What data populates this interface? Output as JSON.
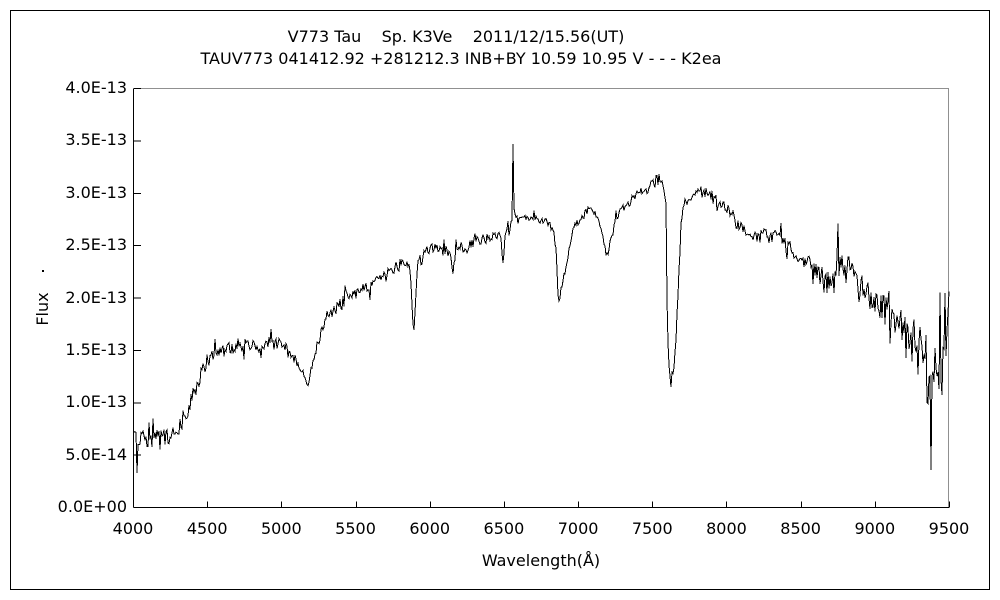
{
  "window": {
    "background": "#ffffff",
    "border_color": "#000000"
  },
  "chart_data": {
    "type": "line",
    "title": "V773 Tau    Sp. K3Ve    2011/12/15.56(UT)",
    "subtitle": "TAUV773 041412.92 +281212.3 INB+BY 10.59 10.95 V - - - K2ea",
    "xlabel": "Wavelength(Å)",
    "ylabel": "Flux",
    "xlim": [
      4000,
      9500
    ],
    "ylim": [
      0,
      4e-13
    ],
    "grid": false,
    "legend": false,
    "x_ticks": [
      4000,
      4500,
      5000,
      5500,
      6000,
      6500,
      7000,
      7500,
      8000,
      8500,
      9000,
      9500
    ],
    "y_tick_labels": [
      "4.0E-13",
      "3.5E-13",
      "3.0E-13",
      "2.5E-13",
      "2.0E-13",
      "1.5E-13",
      "1.0E-13",
      "5.0E-14",
      "0.0E+00"
    ],
    "line_color": "#000000",
    "axis_color": "#000000",
    "frame_top_right_color": "#909090",
    "flux_scale": 1e-13,
    "flux_values_in_units_of_1e-13": true,
    "envelope": [
      [
        4000,
        0.7
      ],
      [
        4022,
        0.62
      ],
      [
        4060,
        0.66
      ],
      [
        4100,
        0.63
      ],
      [
        4150,
        0.66
      ],
      [
        4200,
        0.64
      ],
      [
        4250,
        0.7
      ],
      [
        4300,
        0.74
      ],
      [
        4350,
        0.88
      ],
      [
        4400,
        1.05
      ],
      [
        4450,
        1.25
      ],
      [
        4500,
        1.4
      ],
      [
        4550,
        1.48
      ],
      [
        4600,
        1.51
      ],
      [
        4700,
        1.53
      ],
      [
        4800,
        1.57
      ],
      [
        4855,
        1.52
      ],
      [
        4862,
        1.38
      ],
      [
        4870,
        1.52
      ],
      [
        4900,
        1.58
      ],
      [
        5000,
        1.55
      ],
      [
        5060,
        1.48
      ],
      [
        5120,
        1.38
      ],
      [
        5160,
        1.22
      ],
      [
        5178,
        1.16
      ],
      [
        5205,
        1.34
      ],
      [
        5250,
        1.6
      ],
      [
        5300,
        1.8
      ],
      [
        5350,
        1.88
      ],
      [
        5400,
        1.94
      ],
      [
        5450,
        2.0
      ],
      [
        5500,
        2.04
      ],
      [
        5550,
        2.08
      ],
      [
        5600,
        2.12
      ],
      [
        5650,
        2.16
      ],
      [
        5700,
        2.22
      ],
      [
        5750,
        2.27
      ],
      [
        5800,
        2.32
      ],
      [
        5840,
        2.36
      ],
      [
        5868,
        2.28
      ],
      [
        5886,
        1.8
      ],
      [
        5893,
        1.66
      ],
      [
        5902,
        1.88
      ],
      [
        5917,
        2.3
      ],
      [
        5950,
        2.4
      ],
      [
        6000,
        2.46
      ],
      [
        6050,
        2.48
      ],
      [
        6100,
        2.45
      ],
      [
        6140,
        2.44
      ],
      [
        6157,
        2.22
      ],
      [
        6175,
        2.44
      ],
      [
        6200,
        2.48
      ],
      [
        6250,
        2.5
      ],
      [
        6300,
        2.53
      ],
      [
        6350,
        2.55
      ],
      [
        6400,
        2.58
      ],
      [
        6450,
        2.6
      ],
      [
        6480,
        2.58
      ],
      [
        6494,
        2.35
      ],
      [
        6510,
        2.6
      ],
      [
        6540,
        2.68
      ],
      [
        6556,
        2.78
      ],
      [
        6563,
        3.05
      ],
      [
        6570,
        2.78
      ],
      [
        6600,
        2.74
      ],
      [
        6650,
        2.76
      ],
      [
        6700,
        2.76
      ],
      [
        6750,
        2.74
      ],
      [
        6800,
        2.72
      ],
      [
        6832,
        2.66
      ],
      [
        6852,
        2.45
      ],
      [
        6866,
        2.08
      ],
      [
        6874,
        1.96
      ],
      [
        6890,
        2.12
      ],
      [
        6920,
        2.32
      ],
      [
        6950,
        2.55
      ],
      [
        6980,
        2.7
      ],
      [
        7020,
        2.78
      ],
      [
        7060,
        2.83
      ],
      [
        7100,
        2.85
      ],
      [
        7130,
        2.78
      ],
      [
        7162,
        2.6
      ],
      [
        7192,
        2.38
      ],
      [
        7222,
        2.56
      ],
      [
        7255,
        2.76
      ],
      [
        7300,
        2.85
      ],
      [
        7350,
        2.92
      ],
      [
        7400,
        2.98
      ],
      [
        7450,
        3.02
      ],
      [
        7500,
        3.08
      ],
      [
        7545,
        3.14
      ],
      [
        7577,
        3.09
      ],
      [
        7593,
        2.85
      ],
      [
        7601,
        1.75
      ],
      [
        7613,
        1.32
      ],
      [
        7630,
        1.22
      ],
      [
        7648,
        1.36
      ],
      [
        7662,
        1.68
      ],
      [
        7677,
        2.18
      ],
      [
        7693,
        2.66
      ],
      [
        7712,
        2.88
      ],
      [
        7740,
        2.95
      ],
      [
        7780,
        3.0
      ],
      [
        7820,
        3.02
      ],
      [
        7860,
        3.0
      ],
      [
        7900,
        2.98
      ],
      [
        7950,
        2.92
      ],
      [
        8000,
        2.85
      ],
      [
        8050,
        2.75
      ],
      [
        8100,
        2.66
      ],
      [
        8150,
        2.6
      ],
      [
        8200,
        2.57
      ],
      [
        8250,
        2.6
      ],
      [
        8300,
        2.57
      ],
      [
        8350,
        2.59
      ],
      [
        8400,
        2.54
      ],
      [
        8450,
        2.46
      ],
      [
        8500,
        2.38
      ],
      [
        8550,
        2.32
      ],
      [
        8600,
        2.26
      ],
      [
        8650,
        2.2
      ],
      [
        8700,
        2.18
      ],
      [
        8740,
        2.28
      ],
      [
        8780,
        2.32
      ],
      [
        8820,
        2.3
      ],
      [
        8860,
        2.22
      ],
      [
        8900,
        2.14
      ],
      [
        8950,
        2.04
      ],
      [
        9000,
        1.96
      ],
      [
        9050,
        1.9
      ],
      [
        9100,
        1.86
      ],
      [
        9150,
        1.78
      ],
      [
        9200,
        1.68
      ],
      [
        9250,
        1.58
      ],
      [
        9300,
        1.45
      ],
      [
        9350,
        1.32
      ],
      [
        9400,
        1.22
      ],
      [
        9440,
        1.25
      ],
      [
        9470,
        1.4
      ],
      [
        9500,
        1.6
      ]
    ],
    "noise_sigma": [
      [
        4000,
        0.11
      ],
      [
        4200,
        0.1
      ],
      [
        4400,
        0.08
      ],
      [
        4600,
        0.06
      ],
      [
        5000,
        0.06
      ],
      [
        5160,
        0.05
      ],
      [
        5300,
        0.07
      ],
      [
        5600,
        0.06
      ],
      [
        5850,
        0.055
      ],
      [
        5995,
        0.06
      ],
      [
        6300,
        0.05
      ],
      [
        6550,
        0.04
      ],
      [
        6900,
        0.045
      ],
      [
        7200,
        0.045
      ],
      [
        7600,
        0.05
      ],
      [
        7900,
        0.05
      ],
      [
        8100,
        0.06
      ],
      [
        8400,
        0.07
      ],
      [
        8600,
        0.09
      ],
      [
        8800,
        0.1
      ],
      [
        9000,
        0.12
      ],
      [
        9150,
        0.16
      ],
      [
        9250,
        0.25
      ],
      [
        9350,
        0.33
      ],
      [
        9420,
        0.38
      ],
      [
        9500,
        0.3
      ]
    ],
    "spikes": [
      [
        4026,
        0.33
      ],
      [
        6563,
        3.47
      ],
      [
        7628,
        1.15
      ],
      [
        8751,
        2.71
      ],
      [
        9382,
        0.36
      ],
      [
        9497,
        2.06
      ]
    ],
    "notable_features": [
      {
        "name": "H-alpha emission peak",
        "wavelength": 6563,
        "flux_1e13": 3.47
      },
      {
        "name": "Mg b absorption",
        "wavelength": 5175,
        "flux_1e13": 1.16
      },
      {
        "name": "Na D absorption",
        "wavelength": 5893,
        "flux_1e13": 1.66
      },
      {
        "name": "O2 B-band absorption",
        "wavelength": 6870,
        "flux_1e13": 1.96
      },
      {
        "name": "H2O absorption",
        "wavelength": 7190,
        "flux_1e13": 2.38
      },
      {
        "name": "O2 A-band absorption",
        "wavelength": 7620,
        "flux_1e13": 1.15
      },
      {
        "name": "near-IR emission spike",
        "wavelength": 8751,
        "flux_1e13": 2.71
      },
      {
        "name": "red-end noise minimum",
        "wavelength": 9382,
        "flux_1e13": 0.36
      },
      {
        "name": "red-end spike",
        "wavelength": 9497,
        "flux_1e13": 2.06
      }
    ],
    "seed": 773
  }
}
